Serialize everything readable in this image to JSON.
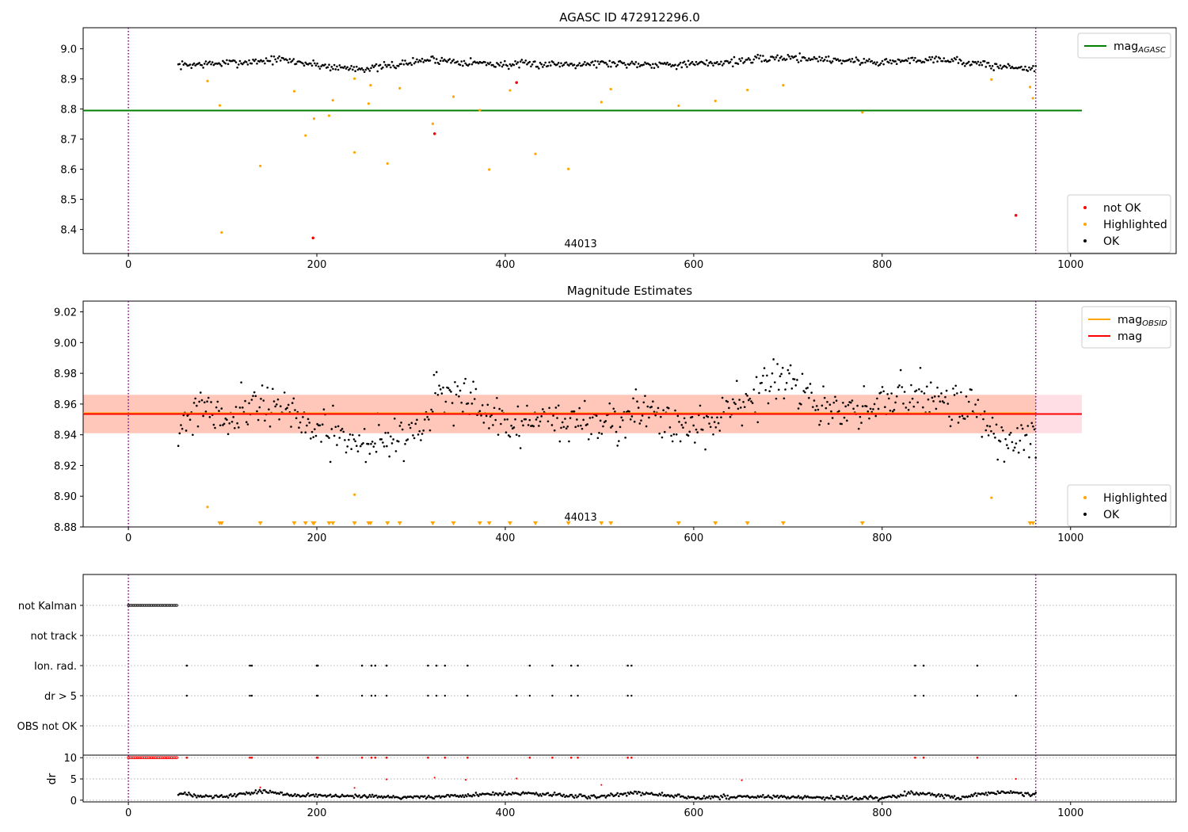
{
  "chart_data": [
    {
      "type": "scatter",
      "title": "AGASC ID 472912296.0",
      "xlim": [
        -48,
        1112
      ],
      "ylim": [
        8.32,
        9.07
      ],
      "x_ticks": [
        0,
        200,
        400,
        600,
        800,
        1000
      ],
      "y_ticks": [
        8.4,
        8.5,
        8.6,
        8.7,
        8.8,
        8.9,
        9.0
      ],
      "obsid_label": "44013",
      "obsid_label_x": 480,
      "vlines": [
        0,
        963
      ],
      "hline": {
        "name": "mag_AGASC",
        "value": 8.795,
        "x_range": [
          -48,
          1012
        ],
        "color": "#008000"
      },
      "legend_top": [
        {
          "label": "mag",
          "sub": "AGASC",
          "color": "#008000",
          "kind": "line"
        }
      ],
      "legend_bottom": [
        {
          "label": "not OK",
          "color": "#ff0000",
          "kind": "dot"
        },
        {
          "label": "Highlighted",
          "color": "#ffa500",
          "kind": "dot"
        },
        {
          "label": "OK",
          "color": "#000000",
          "kind": "dot"
        }
      ],
      "ok_series": {
        "name": "OK",
        "x_start": 53,
        "x_end": 963,
        "mean": 8.955,
        "color": "#000000",
        "trend": [
          [
            53,
            8.945
          ],
          [
            120,
            8.955
          ],
          [
            160,
            8.965
          ],
          [
            220,
            8.938
          ],
          [
            260,
            8.935
          ],
          [
            320,
            8.965
          ],
          [
            400,
            8.947
          ],
          [
            500,
            8.952
          ],
          [
            600,
            8.948
          ],
          [
            700,
            8.972
          ],
          [
            800,
            8.955
          ],
          [
            860,
            8.968
          ],
          [
            920,
            8.942
          ],
          [
            963,
            8.935
          ]
        ]
      },
      "highlighted": {
        "name": "Highlighted",
        "color": "#ffa500",
        "x": [
          84,
          97,
          99,
          140,
          176,
          188,
          197,
          213,
          217,
          240,
          240,
          255,
          257,
          275,
          288,
          323,
          345,
          373,
          383,
          405,
          432,
          467,
          502,
          512,
          584,
          623,
          657,
          695,
          779,
          916,
          957,
          960
        ],
        "y": [
          8.893,
          8.812,
          8.39,
          8.611,
          8.859,
          8.712,
          8.768,
          8.778,
          8.829,
          8.656,
          8.901,
          8.818,
          8.879,
          8.619,
          8.869,
          8.751,
          8.841,
          8.796,
          8.599,
          8.862,
          8.651,
          8.601,
          8.823,
          8.866,
          8.811,
          8.827,
          8.863,
          8.879,
          8.789,
          8.898,
          8.873,
          8.836
        ]
      },
      "not_ok": {
        "name": "not OK",
        "color": "#ff0000",
        "x": [
          196,
          325,
          412,
          942
        ],
        "y": [
          8.372,
          8.718,
          8.888,
          8.447
        ]
      }
    },
    {
      "type": "scatter",
      "title": "Magnitude Estimates",
      "xlim": [
        -48,
        1112
      ],
      "ylim": [
        8.88,
        9.027
      ],
      "x_ticks": [
        0,
        200,
        400,
        600,
        800,
        1000
      ],
      "y_ticks": [
        8.88,
        8.9,
        8.92,
        8.94,
        8.96,
        8.98,
        9.0,
        9.02
      ],
      "obsid_label": "44013",
      "obsid_label_x": 480,
      "vlines": [
        0,
        963
      ],
      "mag": {
        "name": "mag",
        "value": 8.9535,
        "band": [
          8.941,
          8.966
        ],
        "color": "#ff0000",
        "band_color": "#ffc0cb",
        "x_range": [
          -48,
          1012
        ]
      },
      "mag_obsid": {
        "name": "mag_OBSID",
        "value": 8.954,
        "band": [
          8.941,
          8.966
        ],
        "color": "#ffa500",
        "band_color": "#ffa07a",
        "x_range": [
          -48,
          963
        ]
      },
      "legend_top": [
        {
          "label": "mag",
          "sub": "OBSID",
          "color": "#ffa500",
          "kind": "line"
        },
        {
          "label": "mag",
          "sub": "",
          "color": "#ff0000",
          "kind": "line"
        }
      ],
      "legend_bottom": [
        {
          "label": "Highlighted",
          "color": "#ffa500",
          "kind": "dot"
        },
        {
          "label": "OK",
          "color": "#000000",
          "kind": "dot"
        }
      ],
      "ok_series": {
        "name": "OK",
        "x_start": 53,
        "x_end": 963,
        "color": "#000000",
        "trend": [
          [
            53,
            8.945
          ],
          [
            80,
            8.962
          ],
          [
            100,
            8.95
          ],
          [
            140,
            8.963
          ],
          [
            170,
            8.955
          ],
          [
            200,
            8.942
          ],
          [
            240,
            8.935
          ],
          [
            280,
            8.938
          ],
          [
            310,
            8.945
          ],
          [
            330,
            8.968
          ],
          [
            360,
            8.962
          ],
          [
            400,
            8.945
          ],
          [
            440,
            8.95
          ],
          [
            500,
            8.948
          ],
          [
            540,
            8.955
          ],
          [
            580,
            8.945
          ],
          [
            620,
            8.947
          ],
          [
            650,
            8.963
          ],
          [
            700,
            8.975
          ],
          [
            740,
            8.955
          ],
          [
            780,
            8.955
          ],
          [
            820,
            8.965
          ],
          [
            850,
            8.968
          ],
          [
            900,
            8.955
          ],
          [
            930,
            8.935
          ],
          [
            963,
            8.94
          ]
        ]
      },
      "highlighted_points": {
        "name": "Highlighted",
        "color": "#ffa500",
        "x": [
          84,
          240,
          916
        ],
        "y": [
          8.893,
          8.901,
          8.899
        ]
      },
      "highlighted_below": {
        "name": "Highlighted",
        "color": "#ffa500",
        "x": [
          97,
          99,
          140,
          176,
          188,
          196,
          197,
          213,
          217,
          240,
          255,
          257,
          275,
          288,
          323,
          345,
          373,
          383,
          405,
          432,
          467,
          502,
          512,
          584,
          623,
          657,
          695,
          779,
          957,
          960
        ]
      }
    },
    {
      "type": "scatter",
      "xlim": [
        -48,
        1112
      ],
      "vlines": [
        0,
        963
      ],
      "flag_rows": [
        "not Kalman",
        "not track",
        "Ion. rad.",
        "dr > 5",
        "OBS not OK"
      ],
      "not_kalman_range": [
        0,
        53
      ],
      "ion_rad_x": [
        62,
        129,
        131,
        200,
        201,
        248,
        258,
        262,
        274,
        318,
        327,
        336,
        360,
        426,
        450,
        470,
        477,
        530,
        534,
        835,
        844,
        901
      ],
      "dr_gt5_x": [
        62,
        129,
        131,
        200,
        201,
        248,
        258,
        262,
        274,
        318,
        327,
        336,
        360,
        412,
        426,
        450,
        470,
        477,
        530,
        534,
        835,
        844,
        901,
        942
      ]
    },
    {
      "type": "scatter",
      "ylabel": "dr",
      "xlim": [
        -48,
        1112
      ],
      "ylim": [
        -0.4,
        10.6
      ],
      "x_ticks": [
        0,
        200,
        400,
        600,
        800,
        1000
      ],
      "y_ticks": [
        0,
        5,
        10
      ],
      "vlines": [
        0,
        963
      ],
      "red_at_10_x": [
        62,
        129,
        131,
        200,
        201,
        248,
        258,
        262,
        274,
        318,
        336,
        360,
        426,
        450,
        470,
        477,
        530,
        534,
        835,
        844,
        901
      ],
      "red_scatter": {
        "x": [
          140,
          240,
          274,
          325,
          358,
          412,
          502,
          651,
          942
        ],
        "y": [
          3.0,
          2.9,
          4.9,
          5.3,
          4.8,
          5.1,
          3.6,
          4.7,
          5.0
        ]
      },
      "ok_series": {
        "x_start": 53,
        "x_end": 963,
        "color": "#000000",
        "trend": [
          [
            53,
            1.5
          ],
          [
            100,
            0.8
          ],
          [
            140,
            2.1
          ],
          [
            180,
            1.2
          ],
          [
            250,
            0.8
          ],
          [
            300,
            0.7
          ],
          [
            350,
            1.0
          ],
          [
            380,
            1.4
          ],
          [
            420,
            1.6
          ],
          [
            500,
            0.7
          ],
          [
            540,
            1.9
          ],
          [
            600,
            0.6
          ],
          [
            660,
            0.9
          ],
          [
            720,
            0.6
          ],
          [
            800,
            0.5
          ],
          [
            830,
            1.8
          ],
          [
            880,
            0.6
          ],
          [
            910,
            1.5
          ],
          [
            940,
            1.9
          ],
          [
            963,
            1.2
          ]
        ]
      }
    }
  ]
}
